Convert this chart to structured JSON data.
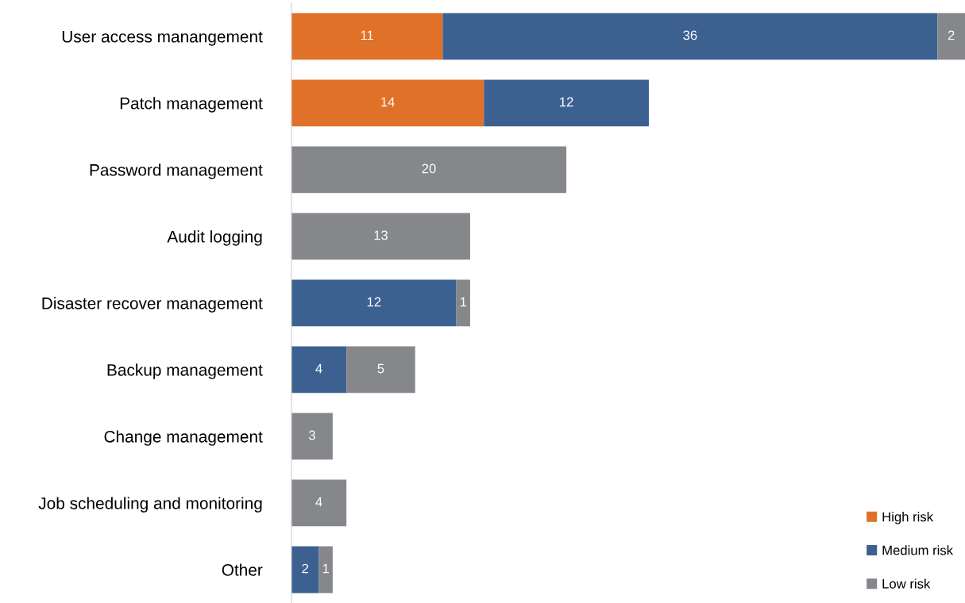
{
  "chart_data": {
    "type": "bar",
    "orientation": "horizontal",
    "stacked": true,
    "data_labels": true,
    "legend": "bottom right",
    "grid": false,
    "categories": [
      "User access manangement",
      "Patch management",
      "Password management",
      "Audit logging",
      "Disaster recover management",
      "Backup management",
      "Change management",
      "Job scheduling and monitoring",
      "Other"
    ],
    "series": [
      {
        "name": "High risk",
        "color": "#e07128",
        "values": [
          11,
          14,
          null,
          null,
          null,
          null,
          null,
          null,
          null
        ]
      },
      {
        "name": "Medium risk",
        "color": "#3c6191",
        "values": [
          36,
          12,
          null,
          null,
          12,
          4,
          null,
          null,
          2
        ]
      },
      {
        "name": "Low risk",
        "color": "#85878b",
        "values": [
          2,
          null,
          20,
          13,
          1,
          5,
          3,
          4,
          1
        ]
      }
    ]
  }
}
